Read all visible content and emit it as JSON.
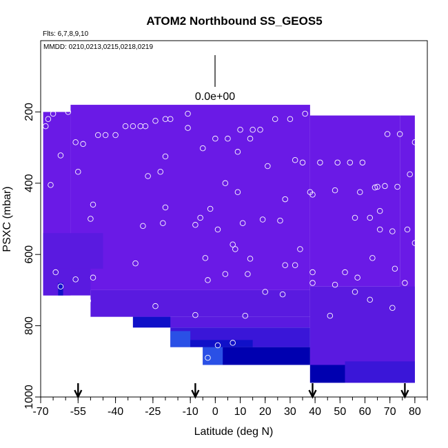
{
  "chart_data": {
    "type": "heatmap",
    "title": "ATOM2 Northbound SS_GEOS5",
    "flights_note": "Flts: 6,7,8,9,10",
    "dates_note": "MMDD: 0210,0213,0215,0218,0219",
    "xlabel": "Latitude (deg N)",
    "ylabel": "PSXC (mbar)",
    "xlim": [
      -70,
      85
    ],
    "ylim": [
      1000,
      0
    ],
    "x_ticks": [
      -70,
      -55,
      -40,
      -25,
      -10,
      0,
      10,
      20,
      30,
      40,
      50,
      60,
      70,
      80
    ],
    "y_ticks": [
      200,
      400,
      600,
      800,
      1000
    ],
    "scale_label": "0.0e+00",
    "colors": {
      "base": "#6a1ae6",
      "mid": "#5a1ae0",
      "deep": "#3a16d8",
      "navy": "#1010c8",
      "dark": "#0000b0",
      "bright": "#2a50e6",
      "marker": "#ffffff"
    },
    "regions": [
      {
        "x0": -69,
        "x1": -58,
        "p0": 200,
        "p1": 715,
        "c": "base"
      },
      {
        "x0": -58,
        "x1": 38,
        "p0": 180,
        "p1": 700,
        "c": "base"
      },
      {
        "x0": 38,
        "x1": 74,
        "p0": 210,
        "p1": 690,
        "c": "base"
      },
      {
        "x0": 74,
        "x1": 80,
        "p0": 210,
        "p1": 960,
        "c": "base"
      },
      {
        "x0": -69,
        "x1": -50,
        "p0": 640,
        "p1": 715,
        "c": "mid"
      },
      {
        "x0": -69,
        "x1": -45,
        "p0": 540,
        "p1": 640,
        "c": "mid"
      },
      {
        "x0": -50,
        "x1": 38,
        "p0": 700,
        "p1": 775,
        "c": "mid"
      },
      {
        "x0": -33,
        "x1": 38,
        "p0": 775,
        "p1": 805,
        "c": "mid"
      },
      {
        "x0": 38,
        "x1": 80,
        "p0": 690,
        "p1": 960,
        "c": "mid"
      },
      {
        "x0": -33,
        "x1": -18,
        "p0": 775,
        "p1": 805,
        "c": "navy"
      },
      {
        "x0": -18,
        "x1": 38,
        "p0": 805,
        "p1": 860,
        "c": "deep"
      },
      {
        "x0": -18,
        "x1": -10,
        "p0": 815,
        "p1": 860,
        "c": "bright"
      },
      {
        "x0": -10,
        "x1": 15,
        "p0": 840,
        "p1": 860,
        "c": "navy"
      },
      {
        "x0": -5,
        "x1": 38,
        "p0": 860,
        "p1": 910,
        "c": "dark"
      },
      {
        "x0": -5,
        "x1": 3,
        "p0": 860,
        "p1": 910,
        "c": "bright"
      },
      {
        "x0": 38,
        "x1": 52,
        "p0": 910,
        "p1": 960,
        "c": "dark"
      },
      {
        "x0": 52,
        "x1": 80,
        "p0": 900,
        "p1": 960,
        "c": "deep"
      },
      {
        "x0": -63,
        "x1": -61,
        "p0": 680,
        "p1": 715,
        "c": "navy"
      }
    ],
    "arrows": [
      -55,
      -8,
      39,
      76
    ],
    "samples": [
      {
        "lat": -68,
        "p": 240
      },
      {
        "lat": -67,
        "p": 220
      },
      {
        "lat": -65,
        "p": 205
      },
      {
        "lat": -59,
        "p": 200
      },
      {
        "lat": -62,
        "p": 322
      },
      {
        "lat": -66,
        "p": 405
      },
      {
        "lat": -64,
        "p": 650
      },
      {
        "lat": -62,
        "p": 690
      },
      {
        "lat": -56,
        "p": 285
      },
      {
        "lat": -53,
        "p": 290
      },
      {
        "lat": -55,
        "p": 368
      },
      {
        "lat": -47,
        "p": 265
      },
      {
        "lat": -44,
        "p": 265
      },
      {
        "lat": -40,
        "p": 265
      },
      {
        "lat": -36,
        "p": 240
      },
      {
        "lat": -33,
        "p": 240
      },
      {
        "lat": -30,
        "p": 240
      },
      {
        "lat": -28,
        "p": 240
      },
      {
        "lat": -24,
        "p": 225
      },
      {
        "lat": -20,
        "p": 220
      },
      {
        "lat": -18,
        "p": 220
      },
      {
        "lat": -11,
        "p": 205
      },
      {
        "lat": -20,
        "p": 325
      },
      {
        "lat": -27,
        "p": 380
      },
      {
        "lat": -22,
        "p": 368
      },
      {
        "lat": -49,
        "p": 460
      },
      {
        "lat": -50,
        "p": 500
      },
      {
        "lat": -56,
        "p": 670
      },
      {
        "lat": -49,
        "p": 665
      },
      {
        "lat": -51,
        "p": 730
      },
      {
        "lat": -29,
        "p": 520
      },
      {
        "lat": -20,
        "p": 468
      },
      {
        "lat": -21,
        "p": 512
      },
      {
        "lat": -5,
        "p": 302
      },
      {
        "lat": 0,
        "p": 275
      },
      {
        "lat": 5,
        "p": 275
      },
      {
        "lat": 10,
        "p": 250
      },
      {
        "lat": 14,
        "p": 275
      },
      {
        "lat": 15,
        "p": 250
      },
      {
        "lat": 18,
        "p": 250
      },
      {
        "lat": 9,
        "p": 312
      },
      {
        "lat": 21,
        "p": 352
      },
      {
        "lat": 24,
        "p": 220
      },
      {
        "lat": 30,
        "p": 220
      },
      {
        "lat": 36,
        "p": 205
      },
      {
        "lat": 32,
        "p": 335
      },
      {
        "lat": 35,
        "p": 342
      },
      {
        "lat": 42,
        "p": 342
      },
      {
        "lat": 49,
        "p": 342
      },
      {
        "lat": 54,
        "p": 342
      },
      {
        "lat": 59,
        "p": 342
      },
      {
        "lat": 69,
        "p": 262
      },
      {
        "lat": 74,
        "p": 262
      },
      {
        "lat": 80,
        "p": 285
      },
      {
        "lat": 78,
        "p": 375
      },
      {
        "lat": -11,
        "p": 245
      },
      {
        "lat": 4,
        "p": 400
      },
      {
        "lat": 9,
        "p": 425
      },
      {
        "lat": 28,
        "p": 445
      },
      {
        "lat": 38,
        "p": 425
      },
      {
        "lat": 39,
        "p": 432
      },
      {
        "lat": 48,
        "p": 420
      },
      {
        "lat": 58,
        "p": 425
      },
      {
        "lat": 64,
        "p": 412
      },
      {
        "lat": 65,
        "p": 410
      },
      {
        "lat": 68,
        "p": 408
      },
      {
        "lat": 73,
        "p": 410
      },
      {
        "lat": -6,
        "p": 497
      },
      {
        "lat": -2,
        "p": 472
      },
      {
        "lat": -8,
        "p": 517
      },
      {
        "lat": 1,
        "p": 530
      },
      {
        "lat": 11,
        "p": 512
      },
      {
        "lat": 19,
        "p": 502
      },
      {
        "lat": 26,
        "p": 505
      },
      {
        "lat": 34,
        "p": 585
      },
      {
        "lat": 56,
        "p": 497
      },
      {
        "lat": 62,
        "p": 497
      },
      {
        "lat": 66,
        "p": 478
      },
      {
        "lat": 66,
        "p": 530
      },
      {
        "lat": 71,
        "p": 535
      },
      {
        "lat": 77,
        "p": 530
      },
      {
        "lat": 80,
        "p": 568
      },
      {
        "lat": 7,
        "p": 572
      },
      {
        "lat": 8,
        "p": 585
      },
      {
        "lat": 14,
        "p": 612
      },
      {
        "lat": -4,
        "p": 610
      },
      {
        "lat": -32,
        "p": 625
      },
      {
        "lat": 4,
        "p": 655
      },
      {
        "lat": 13,
        "p": 655
      },
      {
        "lat": 28,
        "p": 630
      },
      {
        "lat": 32,
        "p": 630
      },
      {
        "lat": 39,
        "p": 650
      },
      {
        "lat": 39,
        "p": 680
      },
      {
        "lat": 48,
        "p": 685
      },
      {
        "lat": 52,
        "p": 650
      },
      {
        "lat": 57,
        "p": 665
      },
      {
        "lat": 63,
        "p": 610
      },
      {
        "lat": 72,
        "p": 640
      },
      {
        "lat": 76,
        "p": 680
      },
      {
        "lat": 56,
        "p": 705
      },
      {
        "lat": 62,
        "p": 727
      },
      {
        "lat": 71,
        "p": 750
      },
      {
        "lat": -3,
        "p": 672
      },
      {
        "lat": 20,
        "p": 705
      },
      {
        "lat": 27,
        "p": 712
      },
      {
        "lat": -24,
        "p": 745
      },
      {
        "lat": -8,
        "p": 770
      },
      {
        "lat": 12,
        "p": 772
      },
      {
        "lat": 46,
        "p": 772
      },
      {
        "lat": 1,
        "p": 855
      },
      {
        "lat": 7,
        "p": 848
      },
      {
        "lat": -3,
        "p": 890
      }
    ]
  }
}
